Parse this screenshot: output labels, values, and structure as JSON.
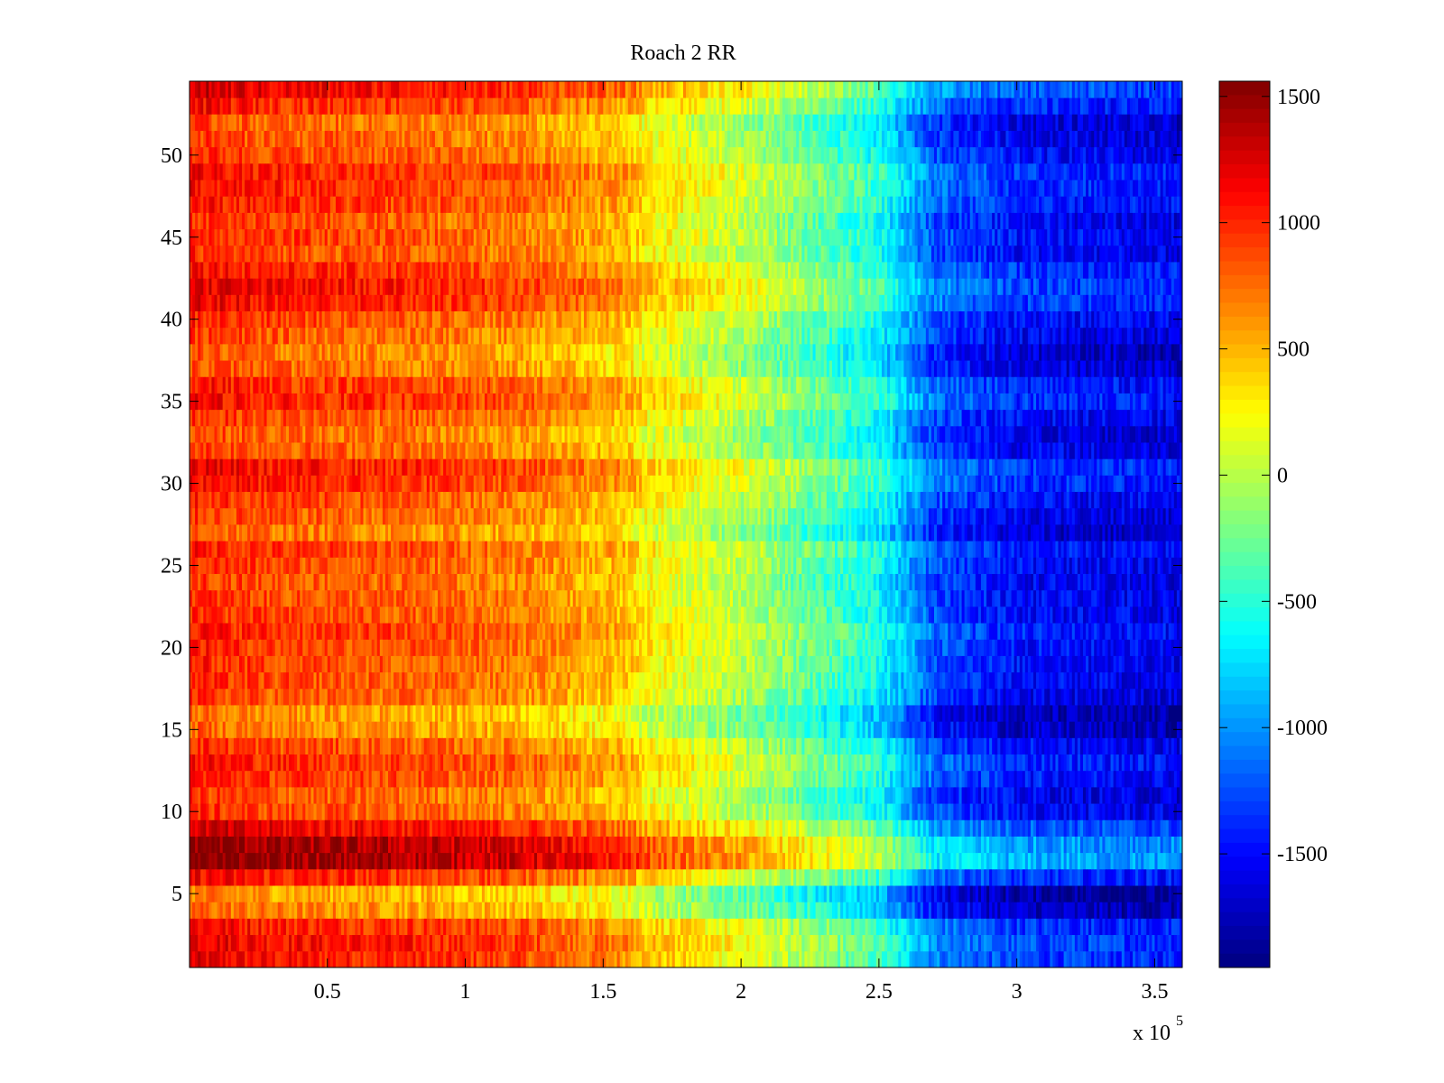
{
  "chart_data": {
    "type": "heatmap",
    "title": "Roach 2 RR",
    "xlabel": "",
    "ylabel": "",
    "x_multiplier_label": "x 10",
    "x_multiplier_exponent": "5",
    "xlim": [
      0,
      3.6
    ],
    "ylim": [
      0.5,
      54.5
    ],
    "xticks": [
      0.5,
      1,
      1.5,
      2,
      2.5,
      3,
      3.5
    ],
    "xtick_labels": [
      "0.5",
      "1",
      "1.5",
      "2",
      "2.5",
      "3",
      "3.5"
    ],
    "yticks": [
      5,
      10,
      15,
      20,
      25,
      30,
      35,
      40,
      45,
      50
    ],
    "ytick_labels": [
      "5",
      "10",
      "15",
      "20",
      "25",
      "30",
      "35",
      "40",
      "45",
      "50"
    ],
    "n_rows": 54,
    "colormap": "jet",
    "clim": [
      -1950,
      1560
    ],
    "colorbar_ticks": [
      1500,
      1000,
      500,
      0,
      -500,
      -1000,
      -1500
    ],
    "colorbar_tick_labels": [
      "1500",
      "1000",
      "500",
      "0",
      "-500",
      "-1000",
      "-1500"
    ],
    "colorbar_position": "right",
    "column_trend": {
      "x": [
        0,
        0.3,
        0.8,
        1.2,
        1.6,
        1.65,
        2.0,
        2.5,
        2.7,
        3.0,
        3.6
      ],
      "value": [
        950,
        820,
        740,
        620,
        380,
        220,
        -60,
        -650,
        -1300,
        -1550,
        -1650
      ]
    },
    "row_offsets": [
      {
        "row": 1,
        "offset": 250
      },
      {
        "row": 2,
        "offset": 300
      },
      {
        "row": 3,
        "offset": 220
      },
      {
        "row": 4,
        "offset": -150
      },
      {
        "row": 5,
        "offset": -250
      },
      {
        "row": 6,
        "offset": 200
      },
      {
        "row": 7,
        "offset": 650
      },
      {
        "row": 8,
        "offset": 600
      },
      {
        "row": 9,
        "offset": 350
      },
      {
        "row": 10,
        "offset": 50
      },
      {
        "row": 11,
        "offset": 0
      },
      {
        "row": 12,
        "offset": 120
      },
      {
        "row": 13,
        "offset": 180
      },
      {
        "row": 14,
        "offset": 60
      },
      {
        "row": 15,
        "offset": -150
      },
      {
        "row": 16,
        "offset": -200
      },
      {
        "row": 17,
        "offset": 0
      },
      {
        "row": 18,
        "offset": 50
      },
      {
        "row": 19,
        "offset": 80
      },
      {
        "row": 20,
        "offset": 100
      },
      {
        "row": 21,
        "offset": 150
      },
      {
        "row": 22,
        "offset": 60
      },
      {
        "row": 23,
        "offset": 40
      },
      {
        "row": 24,
        "offset": 20
      },
      {
        "row": 25,
        "offset": 60
      },
      {
        "row": 26,
        "offset": 120
      },
      {
        "row": 27,
        "offset": -100
      },
      {
        "row": 28,
        "offset": 0
      },
      {
        "row": 29,
        "offset": 80
      },
      {
        "row": 30,
        "offset": 200
      },
      {
        "row": 31,
        "offset": 250
      },
      {
        "row": 32,
        "offset": 20
      },
      {
        "row": 33,
        "offset": -50
      },
      {
        "row": 34,
        "offset": 50
      },
      {
        "row": 35,
        "offset": 200
      },
      {
        "row": 36,
        "offset": 150
      },
      {
        "row": 37,
        "offset": -50
      },
      {
        "row": 38,
        "offset": -100
      },
      {
        "row": 39,
        "offset": 0
      },
      {
        "row": 40,
        "offset": 80
      },
      {
        "row": 41,
        "offset": 250
      },
      {
        "row": 42,
        "offset": 300
      },
      {
        "row": 43,
        "offset": 200
      },
      {
        "row": 44,
        "offset": 50
      },
      {
        "row": 45,
        "offset": 100
      },
      {
        "row": 46,
        "offset": 50
      },
      {
        "row": 47,
        "offset": 150
      },
      {
        "row": 48,
        "offset": 200
      },
      {
        "row": 49,
        "offset": 220
      },
      {
        "row": 50,
        "offset": 60
      },
      {
        "row": 51,
        "offset": 0
      },
      {
        "row": 52,
        "offset": -50
      },
      {
        "row": 53,
        "offset": 180
      },
      {
        "row": 54,
        "offset": 350
      }
    ]
  }
}
